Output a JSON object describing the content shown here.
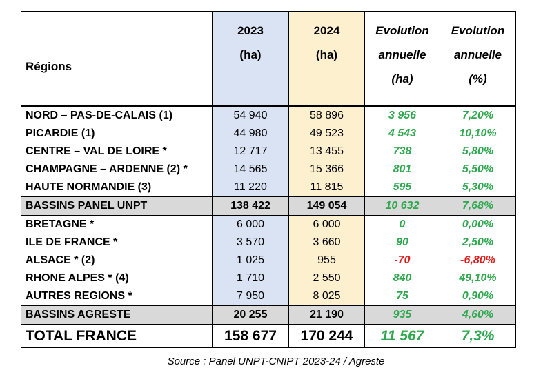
{
  "table": {
    "header": {
      "region": "Régions",
      "y2023": [
        "2023",
        "(ha)"
      ],
      "y2024": [
        "2024",
        "(ha)"
      ],
      "evol_ha": [
        "Evolution",
        "annuelle",
        "(ha)"
      ],
      "evol_pct": [
        "Evolution",
        "annuelle",
        "(%)"
      ]
    },
    "rows": [
      {
        "region": "NORD – PAS-DE-CALAIS (1)",
        "v2023": "54 940",
        "v2024": "58 896",
        "evol_ha": "3 956",
        "evol_pct": "7,20%"
      },
      {
        "region": "PICARDIE (1)",
        "v2023": "44 980",
        "v2024": "49 523",
        "evol_ha": "4 543",
        "evol_pct": "10,10%"
      },
      {
        "region": "CENTRE – VAL DE LOIRE *",
        "v2023": "12 717",
        "v2024": "13 455",
        "evol_ha": "738",
        "evol_pct": "5,80%"
      },
      {
        "region": "CHAMPAGNE – ARDENNE (2) *",
        "v2023": "14 565",
        "v2024": "15 366",
        "evol_ha": "801",
        "evol_pct": "5,50%"
      },
      {
        "region": "HAUTE NORMANDIE (3)",
        "v2023": "11 220",
        "v2024": "11 815",
        "evol_ha": "595",
        "evol_pct": "5,30%"
      },
      {
        "region": "BASSINS PANEL UNPT",
        "v2023": "138 422",
        "v2024": "149 054",
        "evol_ha": "10 632",
        "evol_pct": "7,68%"
      },
      {
        "region": "BRETAGNE *",
        "v2023": "6 000",
        "v2024": "6 000",
        "evol_ha": "0",
        "evol_pct": "0,00%"
      },
      {
        "region": "ILE DE FRANCE *",
        "v2023": "3 570",
        "v2024": "3 660",
        "evol_ha": "90",
        "evol_pct": "2,50%"
      },
      {
        "region": "ALSACE * (2)",
        "v2023": "1 025",
        "v2024": "955",
        "evol_ha": "-70",
        "evol_pct": "-6,80%"
      },
      {
        "region": "RHONE ALPES * (4)",
        "v2023": "1 710",
        "v2024": "2 550",
        "evol_ha": "840",
        "evol_pct": "49,10%"
      },
      {
        "region": "AUTRES REGIONS *",
        "v2023": "7 950",
        "v2024": "8 025",
        "evol_ha": "75",
        "evol_pct": "0,90%"
      },
      {
        "region": "BASSINS AGRESTE",
        "v2023": "20 255",
        "v2024": "21 190",
        "evol_ha": "935",
        "evol_pct": "4,60%"
      }
    ],
    "total": {
      "region": "TOTAL FRANCE",
      "v2023": "158 677",
      "v2024": "170 244",
      "evol_ha": "11 567",
      "evol_pct": "7,3%"
    }
  },
  "source": "Source : Panel UNPT-CNIPT 2023-24 / Agreste",
  "colors": {
    "col_2023_bg": "#dae3f3",
    "col_2024_bg": "#fdf0cf",
    "subtotal_bg": "#d9d9d9",
    "positive": "#2fa84f",
    "negative": "#e01b1b"
  }
}
